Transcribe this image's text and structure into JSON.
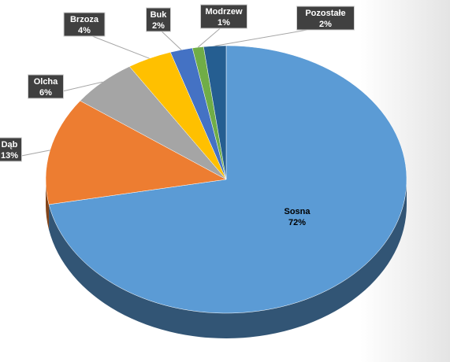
{
  "chart_data": {
    "type": "pie",
    "categories": [
      "Sosna",
      "Dąb",
      "Olcha",
      "Brzoza",
      "Buk",
      "Modrzew",
      "Pozostałe"
    ],
    "values": [
      72,
      13,
      6,
      4,
      2,
      1,
      2
    ],
    "value_labels": [
      "72%",
      "13%",
      "6%",
      "4%",
      "2%",
      "1%",
      "2%"
    ],
    "colors": [
      "#5b9bd5",
      "#ed7d31",
      "#a5a5a5",
      "#ffc000",
      "#4472c4",
      "#70ad47",
      "#255e91"
    ]
  }
}
